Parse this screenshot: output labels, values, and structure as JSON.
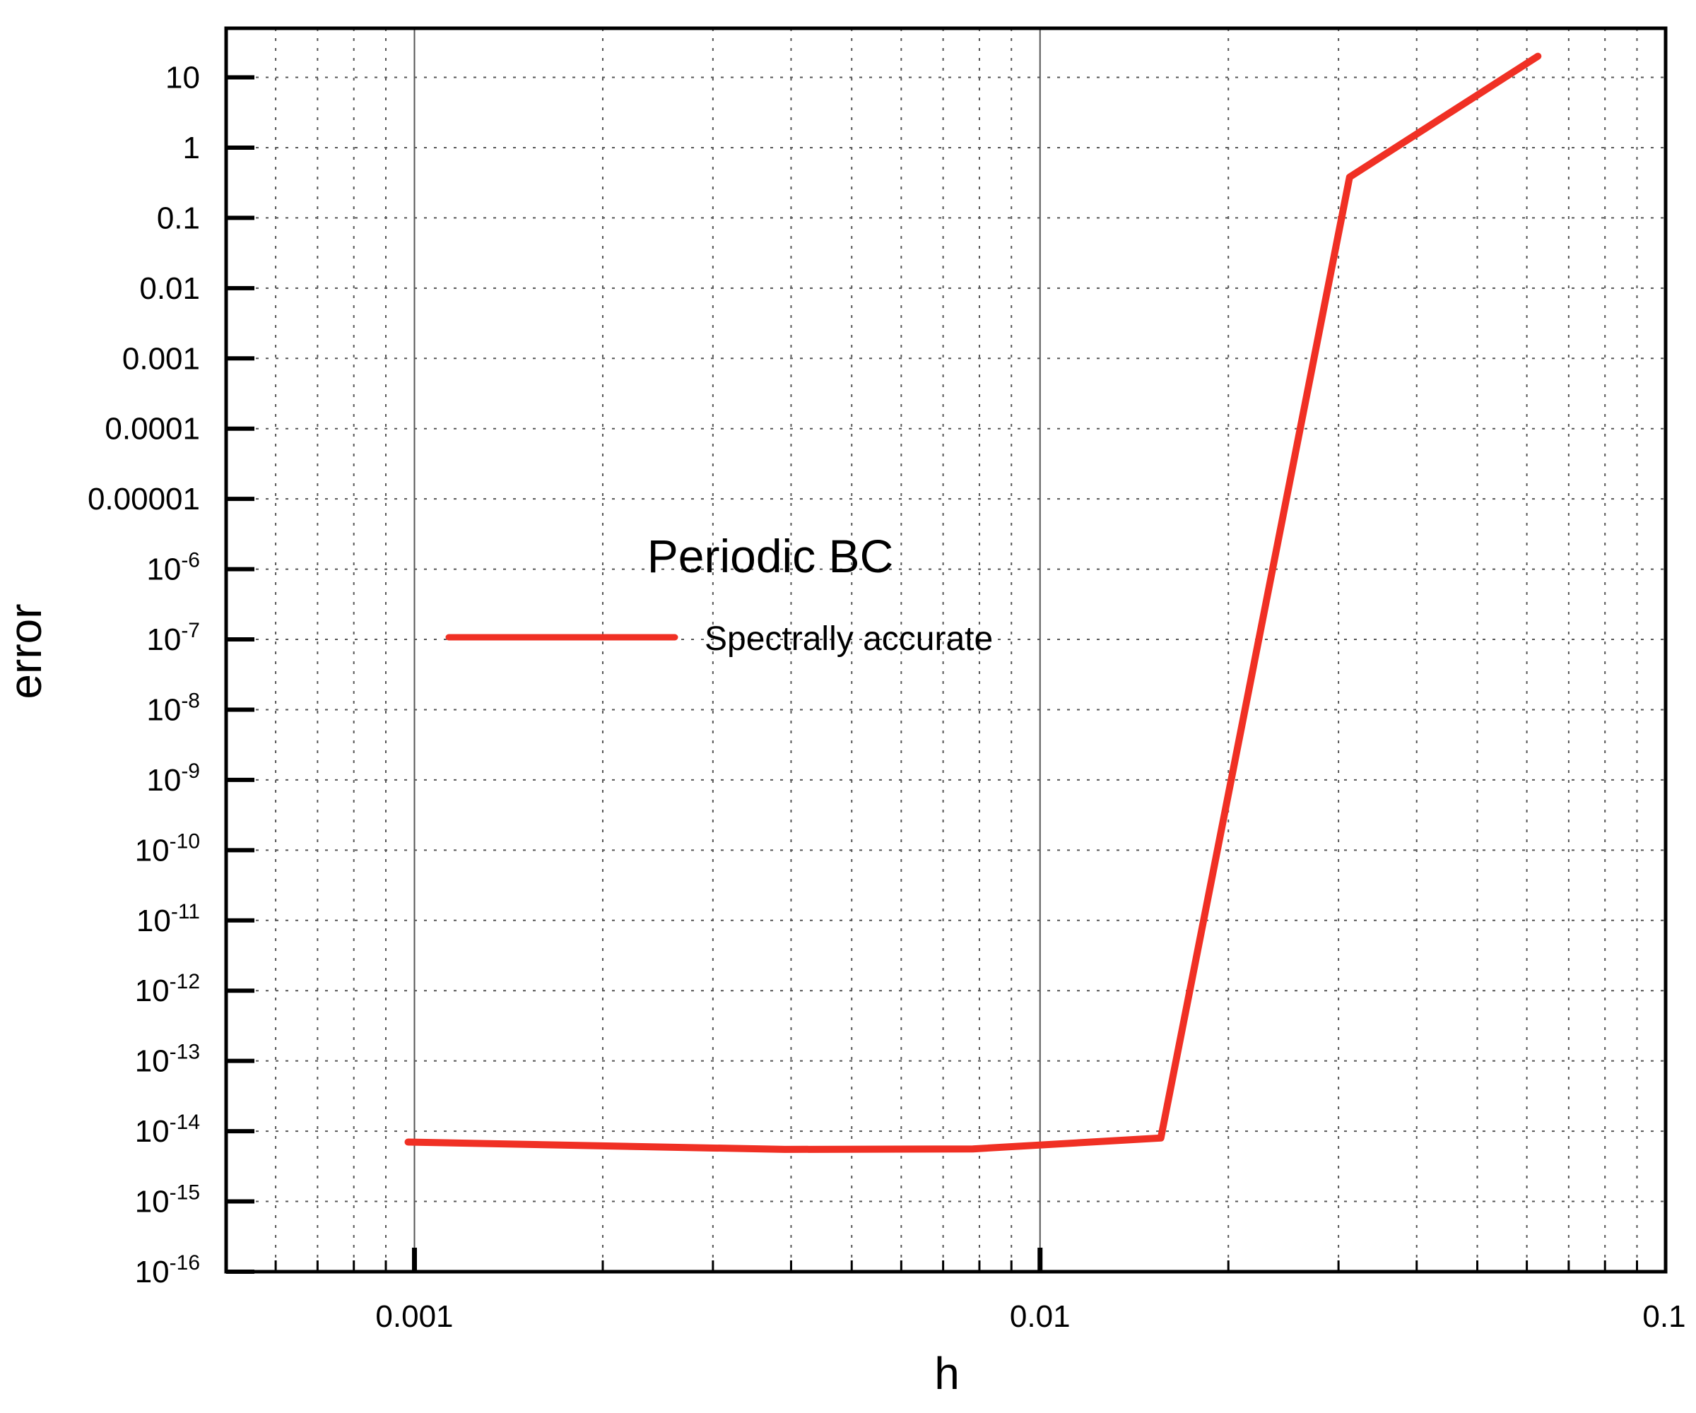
{
  "chart_data": {
    "type": "line",
    "title": "Periodic BC",
    "xlabel": "h",
    "ylabel": "error",
    "xscale": "log",
    "yscale": "log",
    "xlim": [
      0.0005,
      0.1
    ],
    "ylim": [
      1e-16,
      50
    ],
    "grid": true,
    "legend_position": "left",
    "x_ticks": [
      {
        "value": 0.001,
        "label": "0.001"
      },
      {
        "value": 0.01,
        "label": "0.01"
      },
      {
        "value": 0.1,
        "label": "0.1"
      }
    ],
    "y_ticks": [
      {
        "value": 10,
        "base": "10",
        "exp": ""
      },
      {
        "value": 1,
        "base": "1",
        "exp": ""
      },
      {
        "value": 0.1,
        "base": "0.1",
        "exp": ""
      },
      {
        "value": 0.01,
        "base": "0.01",
        "exp": ""
      },
      {
        "value": 0.001,
        "base": "0.001",
        "exp": ""
      },
      {
        "value": 0.0001,
        "base": "0.0001",
        "exp": ""
      },
      {
        "value": 1e-05,
        "base": "0.00001",
        "exp": ""
      },
      {
        "value": 1e-06,
        "base": "10",
        "exp": "-6"
      },
      {
        "value": 1e-07,
        "base": "10",
        "exp": "-7"
      },
      {
        "value": 1e-08,
        "base": "10",
        "exp": "-8"
      },
      {
        "value": 1e-09,
        "base": "10",
        "exp": "-9"
      },
      {
        "value": 1e-10,
        "base": "10",
        "exp": "-10"
      },
      {
        "value": 1e-11,
        "base": "10",
        "exp": "-11"
      },
      {
        "value": 1e-12,
        "base": "10",
        "exp": "-12"
      },
      {
        "value": 1e-13,
        "base": "10",
        "exp": "-13"
      },
      {
        "value": 1e-14,
        "base": "10",
        "exp": "-14"
      },
      {
        "value": 1e-15,
        "base": "10",
        "exp": "-15"
      },
      {
        "value": 1e-16,
        "base": "10",
        "exp": "-16"
      }
    ],
    "series": [
      {
        "name": "Spectrally accurate",
        "color": "#f03024",
        "x": [
          0.000977,
          0.00391,
          0.00781,
          0.0156,
          0.03125,
          0.0625
        ],
        "y": [
          7e-15,
          5.5e-15,
          5.6e-15,
          8e-15,
          0.38,
          20
        ]
      }
    ]
  }
}
